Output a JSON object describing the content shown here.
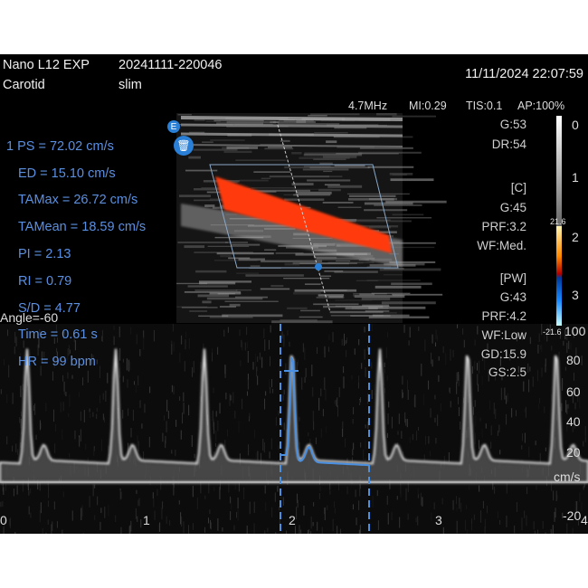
{
  "header": {
    "probe": "Nano L12 EXP",
    "exam_id": "20241111-220046",
    "preset": "Carotid",
    "mode": "slim",
    "datetime": "11/11/2024 22:07:59"
  },
  "acoustic": {
    "freq": "4.7MHz",
    "mi": "MI:0.29",
    "tis": "TIS:0.1",
    "ap": "AP:100%"
  },
  "bmode_params": {
    "gain": "G:53",
    "dr": "DR:54"
  },
  "color_params": {
    "label": "[C]",
    "gain": "G:45",
    "prf": "PRF:3.2",
    "wf": "WF:Med."
  },
  "pw_params": {
    "label": "[PW]",
    "gain": "G:43",
    "prf": "PRF:4.2",
    "wf": "WF:Low",
    "gd": "GD:15.9",
    "gs": "GS:2.5"
  },
  "depth_scale": [
    "0",
    "1",
    "2",
    "3"
  ],
  "color_scale": {
    "max": "21.6",
    "min": "-21.6"
  },
  "measurements": [
    "1 PS = 72.02 cm/s",
    "ED = 15.10 cm/s",
    "TAMax = 26.72 cm/s",
    "TAMean = 18.59 cm/s",
    "PI = 2.13",
    "RI = 0.79",
    "S/D = 4.77",
    "Time = 0.61 s",
    "HR = 99 bpm"
  ],
  "angle": "Angle=-60",
  "icons": {
    "edit": "E",
    "delete": "trash-icon"
  },
  "velocity_axis": {
    "unit": "cm/s",
    "ticks": [
      "100",
      "80",
      "60",
      "40",
      "20",
      "-20"
    ]
  },
  "time_axis": {
    "ticks": [
      "0",
      "1",
      "2",
      "3",
      "4"
    ]
  },
  "colors": {
    "measurement": "#5b8fe0",
    "trace": "#4a90e2",
    "flow": "#ff3a10"
  }
}
